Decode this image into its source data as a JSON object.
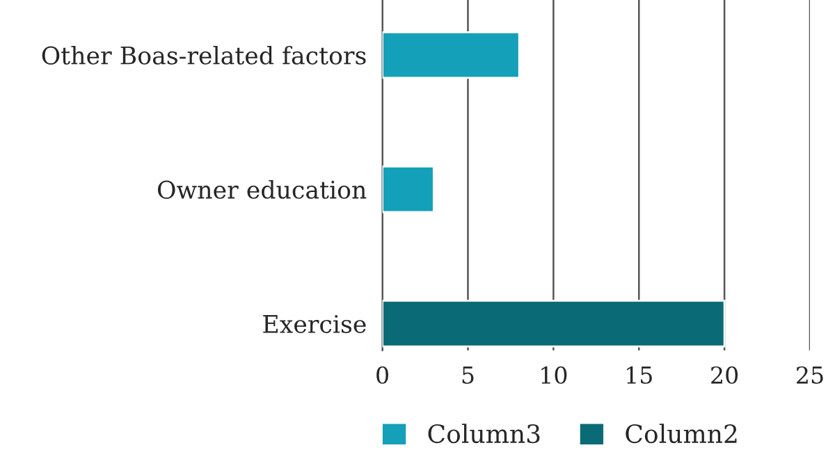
{
  "chart_data": {
    "type": "bar",
    "orientation": "horizontal",
    "categories": [
      "Other Boas-related factors",
      "Owner education",
      "Exercise"
    ],
    "series": [
      {
        "name": "Column3",
        "color": "#14a0b8",
        "values": [
          8,
          3,
          null
        ]
      },
      {
        "name": "Column2",
        "color": "#0a6b76",
        "values": [
          null,
          null,
          20
        ]
      }
    ],
    "xlim": [
      0,
      25
    ],
    "xticks": [
      0,
      5,
      10,
      15,
      20,
      25
    ],
    "grid": "x",
    "legend": "bottom"
  }
}
